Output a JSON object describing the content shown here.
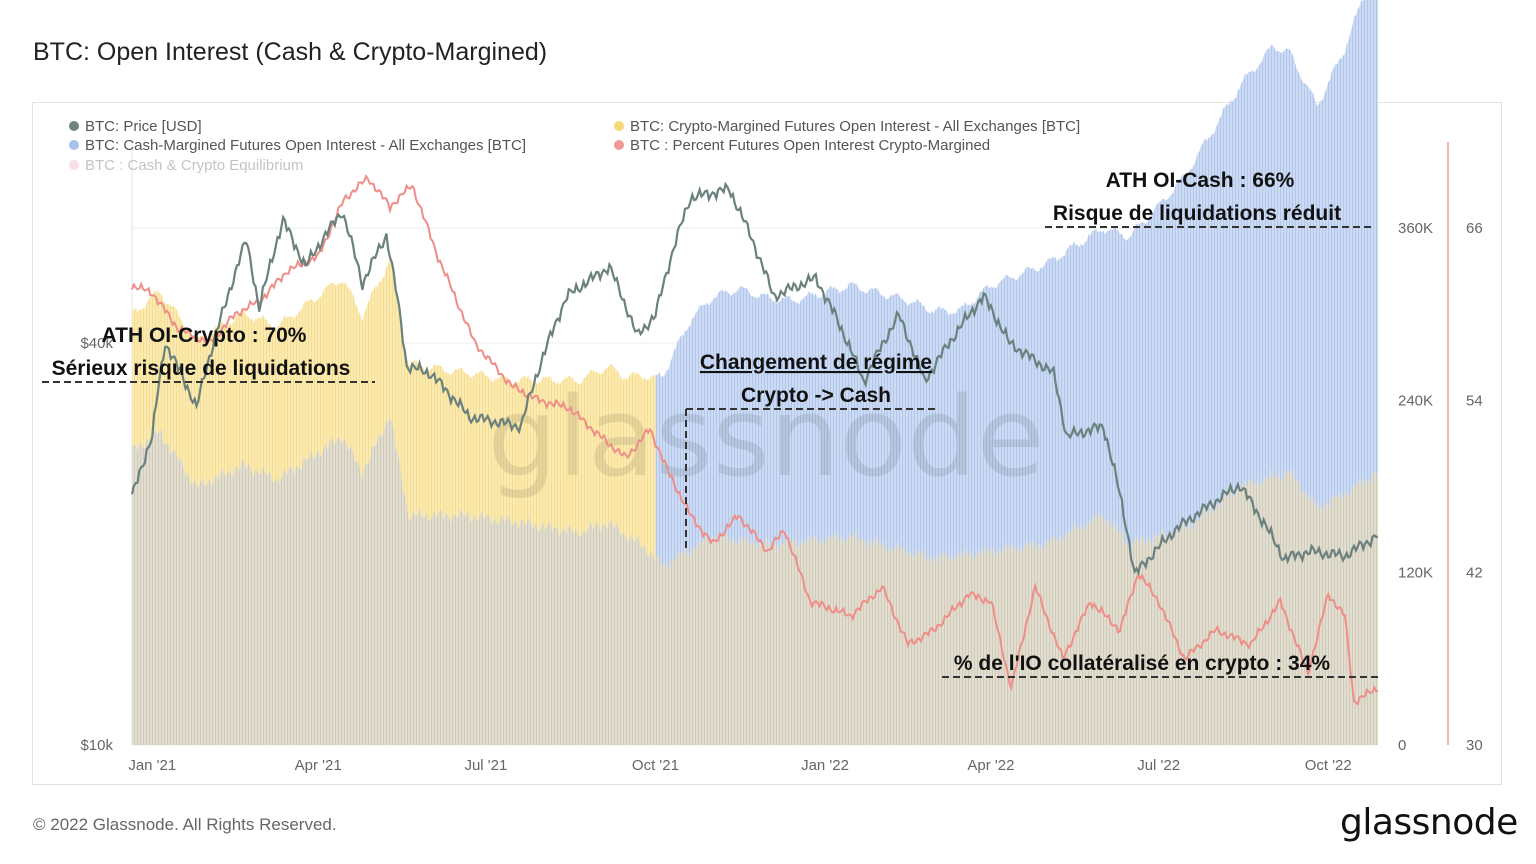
{
  "title": "BTC: Open Interest (Cash & Crypto-Margined)",
  "footer": {
    "copyright": "© 2022 Glassnode. All Rights Reserved.",
    "logo": "glassnode"
  },
  "watermark": "glassnode",
  "legend": [
    {
      "label": "BTC: Price [USD]",
      "color": "#6e8581"
    },
    {
      "label": "BTC: Crypto-Margined Futures Open Interest - All Exchanges [BTC]",
      "color": "#f7d878"
    },
    {
      "label": "BTC: Cash-Margined Futures Open Interest - All Exchanges [BTC]",
      "color": "#a9c1ea"
    },
    {
      "label": "BTC : Percent Futures Open Interest Crypto-Margined",
      "color": "#ef9a95"
    },
    {
      "label": "BTC : Cash & Crypto Equilibrium",
      "color": "#f2a9b9"
    }
  ],
  "annotations": {
    "ath_cash_1": "ATH OI-Cash : 66%",
    "ath_cash_2": "Risque de liquidations réduit",
    "ath_crypto_1": "ATH OI-Crypto : 70%",
    "ath_crypto_2": "Sérieux risque de liquidations",
    "regime_1": "Changement de régime",
    "regime_2": "Crypto -> Cash",
    "pct_crypto": "% de l'IO collatéralisé en crypto : 34%"
  },
  "chart_data": {
    "type": "area",
    "x_ticks": [
      "Jan '21",
      "Apr '21",
      "Jul '21",
      "Oct '21",
      "Jan '22",
      "Apr '22",
      "Jul '22",
      "Oct '22"
    ],
    "x_tick_dates": [
      "2021-01-01",
      "2021-04-01",
      "2021-07-01",
      "2021-10-01",
      "2022-01-01",
      "2022-04-01",
      "2022-07-01",
      "2022-10-01"
    ],
    "x_range": [
      "2020-12-21",
      "2022-10-28"
    ],
    "left_axis": {
      "scale": "log",
      "ticks": [
        "$10k",
        "$40k"
      ],
      "values": [
        10000,
        40000
      ]
    },
    "right_axis_oi": {
      "ticks": [
        "0",
        "120K",
        "240K",
        "360K"
      ],
      "range": [
        0,
        420000
      ]
    },
    "right_axis_pct": {
      "ticks": [
        "30",
        "42",
        "54",
        "66"
      ],
      "range": [
        30,
        72
      ]
    },
    "series": [
      {
        "name": "BTC: Cash-Margined Futures Open Interest - All Exchanges [BTC]",
        "note": "stacked on top of crypto-margined OI",
        "points": [
          [
            "2020-12-21",
            95000
          ],
          [
            "2021-01-15",
            100000
          ],
          [
            "2021-02-15",
            105000
          ],
          [
            "2021-03-15",
            107000
          ],
          [
            "2021-04-10",
            110000
          ],
          [
            "2021-05-10",
            108000
          ],
          [
            "2021-06-15",
            100000
          ],
          [
            "2021-07-15",
            98000
          ],
          [
            "2021-08-15",
            105000
          ],
          [
            "2021-09-15",
            110000
          ],
          [
            "2021-10-01",
            125000
          ],
          [
            "2021-10-20",
            160000
          ],
          [
            "2021-11-15",
            175000
          ],
          [
            "2021-12-15",
            168000
          ],
          [
            "2022-01-15",
            175000
          ],
          [
            "2022-02-15",
            175000
          ],
          [
            "2022-03-15",
            170000
          ],
          [
            "2022-04-01",
            185000
          ],
          [
            "2022-05-01",
            195000
          ],
          [
            "2022-06-01",
            200000
          ],
          [
            "2022-07-01",
            230000
          ],
          [
            "2022-08-01",
            265000
          ],
          [
            "2022-09-01",
            300000
          ],
          [
            "2022-09-25",
            280000
          ],
          [
            "2022-10-10",
            310000
          ],
          [
            "2022-10-28",
            360000
          ]
        ]
      },
      {
        "name": "BTC: Crypto-Margined Futures Open Interest - All Exchanges [BTC]",
        "points": [
          [
            "2020-12-21",
            205000
          ],
          [
            "2021-01-05",
            218000
          ],
          [
            "2021-01-25",
            180000
          ],
          [
            "2021-02-20",
            195000
          ],
          [
            "2021-03-10",
            185000
          ],
          [
            "2021-04-14",
            215000
          ],
          [
            "2021-04-25",
            190000
          ],
          [
            "2021-05-10",
            230000
          ],
          [
            "2021-05-20",
            160000
          ],
          [
            "2021-06-20",
            160000
          ],
          [
            "2021-07-20",
            155000
          ],
          [
            "2021-08-20",
            148000
          ],
          [
            "2021-09-05",
            155000
          ],
          [
            "2021-09-25",
            138000
          ],
          [
            "2021-10-05",
            125000
          ],
          [
            "2021-11-01",
            145000
          ],
          [
            "2021-12-01",
            140000
          ],
          [
            "2022-01-15",
            145000
          ],
          [
            "2022-03-01",
            130000
          ],
          [
            "2022-04-01",
            135000
          ],
          [
            "2022-05-01",
            140000
          ],
          [
            "2022-06-01",
            160000
          ],
          [
            "2022-06-15",
            140000
          ],
          [
            "2022-07-15",
            150000
          ],
          [
            "2022-08-15",
            180000
          ],
          [
            "2022-09-10",
            190000
          ],
          [
            "2022-09-25",
            165000
          ],
          [
            "2022-10-10",
            175000
          ],
          [
            "2022-10-28",
            190000
          ]
        ]
      },
      {
        "name": "BTC: Price [USD]",
        "points": [
          [
            "2020-12-21",
            23500
          ],
          [
            "2021-01-01",
            29000
          ],
          [
            "2021-01-08",
            40000
          ],
          [
            "2021-01-25",
            32000
          ],
          [
            "2021-02-10",
            46000
          ],
          [
            "2021-02-21",
            57000
          ],
          [
            "2021-02-28",
            45000
          ],
          [
            "2021-03-13",
            61000
          ],
          [
            "2021-03-25",
            52000
          ],
          [
            "2021-04-14",
            63000
          ],
          [
            "2021-04-25",
            49000
          ],
          [
            "2021-05-08",
            58000
          ],
          [
            "2021-05-19",
            37000
          ],
          [
            "2021-06-01",
            36000
          ],
          [
            "2021-06-22",
            31000
          ],
          [
            "2021-07-20",
            30000
          ],
          [
            "2021-08-14",
            47000
          ],
          [
            "2021-09-06",
            52000
          ],
          [
            "2021-09-21",
            41000
          ],
          [
            "2021-10-01",
            44000
          ],
          [
            "2021-10-20",
            66000
          ],
          [
            "2021-11-10",
            68000
          ],
          [
            "2021-12-04",
            47000
          ],
          [
            "2021-12-27",
            50000
          ],
          [
            "2022-01-22",
            35000
          ],
          [
            "2022-02-10",
            44000
          ],
          [
            "2022-02-24",
            35000
          ],
          [
            "2022-03-28",
            47000
          ],
          [
            "2022-04-11",
            40000
          ],
          [
            "2022-05-05",
            36000
          ],
          [
            "2022-05-12",
            29000
          ],
          [
            "2022-06-01",
            30000
          ],
          [
            "2022-06-18",
            18000
          ],
          [
            "2022-07-10",
            21000
          ],
          [
            "2022-08-14",
            24500
          ],
          [
            "2022-09-07",
            19000
          ],
          [
            "2022-09-21",
            19500
          ],
          [
            "2022-10-10",
            19200
          ],
          [
            "2022-10-28",
            20600
          ]
        ]
      },
      {
        "name": "BTC : Percent Futures Open Interest Crypto-Margined",
        "points": [
          [
            "2020-12-21",
            62
          ],
          [
            "2021-01-01",
            61.5
          ],
          [
            "2021-01-15",
            59
          ],
          [
            "2021-02-01",
            58
          ],
          [
            "2021-02-15",
            60
          ],
          [
            "2021-03-01",
            61
          ],
          [
            "2021-03-15",
            63
          ],
          [
            "2021-04-01",
            64
          ],
          [
            "2021-04-15",
            68
          ],
          [
            "2021-04-28",
            69.5
          ],
          [
            "2021-05-10",
            67.5
          ],
          [
            "2021-05-22",
            69
          ],
          [
            "2021-06-05",
            64
          ],
          [
            "2021-06-25",
            58
          ],
          [
            "2021-07-15",
            55
          ],
          [
            "2021-07-30",
            54
          ],
          [
            "2021-08-15",
            53.5
          ],
          [
            "2021-09-01",
            51.5
          ],
          [
            "2021-09-15",
            50
          ],
          [
            "2021-09-28",
            52
          ],
          [
            "2021-10-08",
            49
          ],
          [
            "2021-10-20",
            46
          ],
          [
            "2021-11-01",
            44
          ],
          [
            "2021-11-15",
            46
          ],
          [
            "2021-12-01",
            43.5
          ],
          [
            "2021-12-10",
            45
          ],
          [
            "2021-12-24",
            40
          ],
          [
            "2022-01-15",
            39
          ],
          [
            "2022-02-01",
            41
          ],
          [
            "2022-02-15",
            37
          ],
          [
            "2022-03-01",
            38
          ],
          [
            "2022-03-20",
            40.5
          ],
          [
            "2022-04-01",
            40
          ],
          [
            "2022-04-12",
            34
          ],
          [
            "2022-04-25",
            41
          ],
          [
            "2022-05-10",
            36
          ],
          [
            "2022-05-25",
            40
          ],
          [
            "2022-06-10",
            38
          ],
          [
            "2022-06-20",
            42
          ],
          [
            "2022-07-01",
            40
          ],
          [
            "2022-07-15",
            36
          ],
          [
            "2022-08-01",
            38
          ],
          [
            "2022-08-20",
            37
          ],
          [
            "2022-09-05",
            40
          ],
          [
            "2022-09-20",
            35
          ],
          [
            "2022-10-01",
            40.5
          ],
          [
            "2022-10-10",
            39
          ],
          [
            "2022-10-15",
            33
          ],
          [
            "2022-10-28",
            34
          ]
        ]
      }
    ]
  }
}
